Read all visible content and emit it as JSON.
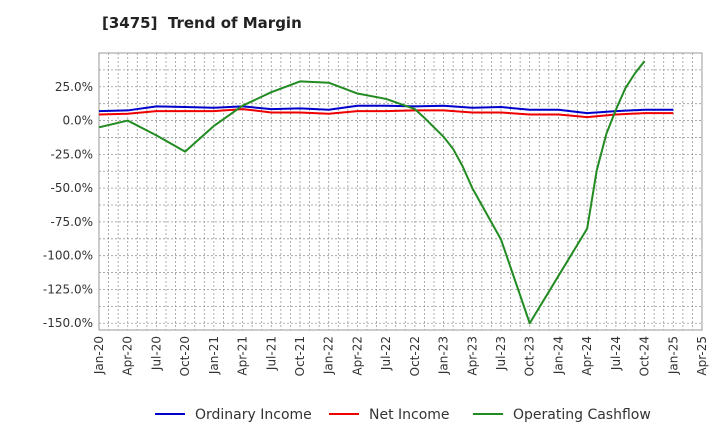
{
  "title": "[3475]  Trend of Margin",
  "chart_data": {
    "type": "line",
    "title": "[3475]  Trend of Margin",
    "xlabel": "",
    "ylabel": "",
    "x": [
      "Jan-20",
      "Apr-20",
      "Jul-20",
      "Oct-20",
      "Jan-21",
      "Apr-21",
      "Jul-21",
      "Oct-21",
      "Jan-22",
      "Apr-22",
      "Jul-22",
      "Oct-22",
      "Jan-23",
      "Apr-23",
      "Jul-23",
      "Oct-23",
      "Jan-24",
      "Apr-24",
      "Jul-24",
      "Oct-24",
      "Jan-25",
      "Apr-25"
    ],
    "ylim": [
      -155,
      50
    ],
    "yticks": [
      -150,
      -125,
      -100,
      -75,
      -50,
      -25,
      0,
      25
    ],
    "ytick_labels": [
      "-150.0%",
      "-125.0%",
      "-100.0%",
      "-75.0%",
      "-50.0%",
      "-25.0%",
      "0.0%",
      "25.0%"
    ],
    "grid": true,
    "legend_position": "bottom",
    "series": [
      {
        "name": "Ordinary Income",
        "color": "#0000cc",
        "x": [
          "Jan-20",
          "Apr-20",
          "Jul-20",
          "Oct-20",
          "Jan-21",
          "Apr-21",
          "Jul-21",
          "Oct-21",
          "Jan-22",
          "Apr-22",
          "Jul-22",
          "Oct-22",
          "Jan-23",
          "Apr-23",
          "Jul-23",
          "Oct-23",
          "Jan-24",
          "Apr-24",
          "Jul-24",
          "Oct-24",
          "Jan-25"
        ],
        "values": [
          7,
          7.5,
          10.5,
          10,
          9.5,
          10.5,
          8.5,
          9,
          8,
          11,
          11,
          10.5,
          11,
          9.5,
          10,
          8,
          8,
          5.5,
          7,
          8,
          8
        ]
      },
      {
        "name": "Net Income",
        "color": "#ee0000",
        "x": [
          "Jan-20",
          "Apr-20",
          "Jul-20",
          "Oct-20",
          "Jan-21",
          "Apr-21",
          "Jul-21",
          "Oct-21",
          "Jan-22",
          "Apr-22",
          "Jul-22",
          "Oct-22",
          "Jan-23",
          "Apr-23",
          "Jul-23",
          "Oct-23",
          "Jan-24",
          "Apr-24",
          "Jul-24",
          "Oct-24",
          "Jan-25"
        ],
        "values": [
          4.5,
          5,
          7,
          7,
          7,
          8.5,
          6,
          6,
          5,
          7,
          7,
          7.5,
          7.5,
          6,
          6,
          4.5,
          4.5,
          2.5,
          4.5,
          5.5,
          5.5
        ]
      },
      {
        "name": "Operating Cashflow",
        "color": "#228b22",
        "x": [
          "Jan-20",
          "Apr-20",
          "Jul-20",
          "Oct-20",
          "Jan-21",
          "Apr-21",
          "Jul-21",
          "Oct-21",
          "Jan-22",
          "Apr-22",
          "Jul-22",
          "Oct-22",
          "Nov-22",
          "Dec-22",
          "Jan-23",
          "Feb-23",
          "Mar-23",
          "Apr-23",
          "Jul-23",
          "Oct-23",
          "Jan-24",
          "Apr-24",
          "May-24",
          "Jun-24",
          "Jul-24",
          "Aug-24",
          "Sep-24",
          "Oct-24"
        ],
        "values": [
          -5,
          0,
          -11,
          -23,
          -4,
          11,
          21,
          29,
          28,
          20,
          16,
          8.5,
          2,
          -5,
          -12,
          -21,
          -34,
          -50,
          -88,
          -150,
          -115,
          -80,
          -37,
          -10,
          8,
          24,
          35,
          44
        ]
      }
    ]
  }
}
